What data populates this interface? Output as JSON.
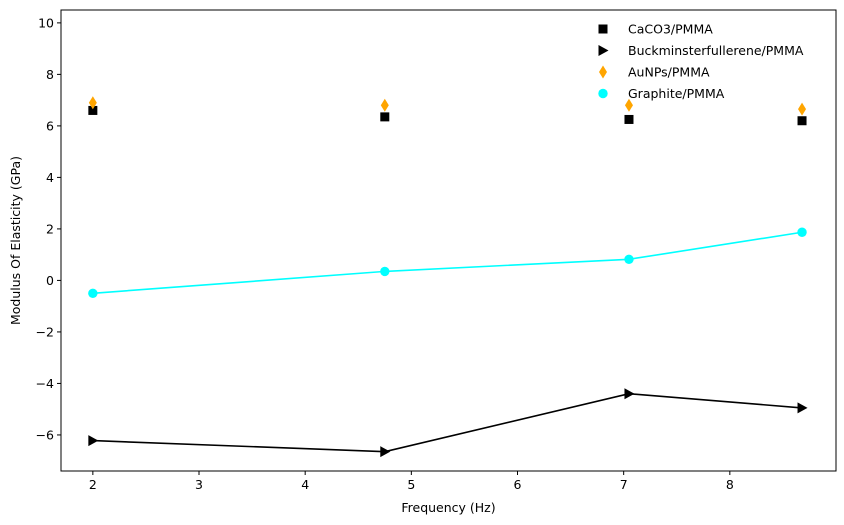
{
  "chart_data": {
    "type": "scatter",
    "title": "",
    "xlabel": "Frequency (Hz)",
    "ylabel": "Modulus Of Elasticity (GPa)",
    "xlim": [
      1.7,
      9.0
    ],
    "ylim": [
      -7.4,
      10.5
    ],
    "xticks": [
      2,
      3,
      4,
      5,
      6,
      7,
      8
    ],
    "yticks": [
      -6,
      -4,
      -2,
      0,
      2,
      4,
      6,
      8,
      10
    ],
    "grid": false,
    "legend_position": "top-right",
    "series": [
      {
        "name": "CaCO3/PMMA",
        "marker": "square",
        "line": false,
        "color": "#000000",
        "x": [
          2.0,
          4.75,
          7.05,
          8.68
        ],
        "y": [
          6.6,
          6.35,
          6.25,
          6.2
        ]
      },
      {
        "name": "Buckminsterfullerene/PMMA",
        "marker": "triangle-right",
        "line": true,
        "color": "#000000",
        "x": [
          2.0,
          4.75,
          7.05,
          8.68
        ],
        "y": [
          -6.22,
          -6.65,
          -4.4,
          -4.95
        ]
      },
      {
        "name": "AuNPs/PMMA",
        "marker": "thin-diamond",
        "line": false,
        "color": "#ffa500",
        "x": [
          2.0,
          4.75,
          7.05,
          8.68
        ],
        "y": [
          6.9,
          6.8,
          6.8,
          6.65
        ]
      },
      {
        "name": " Graphite/PMMA",
        "marker": "circle",
        "line": true,
        "color": "#00ffff",
        "x": [
          2.0,
          4.75,
          7.05,
          8.68
        ],
        "y": [
          -0.5,
          0.35,
          0.82,
          1.87
        ]
      }
    ]
  }
}
